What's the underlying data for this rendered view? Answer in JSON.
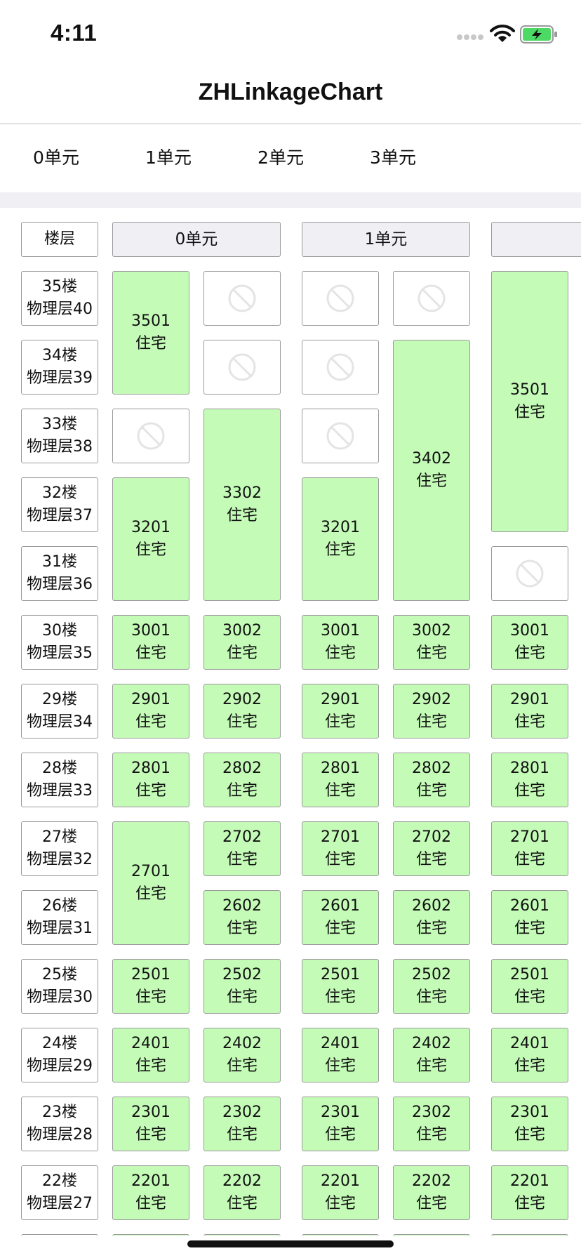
{
  "status_bar": {
    "time": "4:11",
    "icons": [
      "cellular-signal-icon",
      "wifi-icon",
      "battery-charging-icon"
    ],
    "battery_color": "#4cd964"
  },
  "nav": {
    "title": "ZHLinkageChart"
  },
  "tabs": [
    {
      "label": "0单元"
    },
    {
      "label": "1单元"
    },
    {
      "label": "2单元"
    },
    {
      "label": "3单元"
    }
  ],
  "colors": {
    "room_fill": "#c4fbb7",
    "header_fill": "#efeff4",
    "separator": "#efeff4"
  },
  "grid": {
    "corner_label": "楼层",
    "unit_headers": [
      "0单元",
      "1单元",
      ""
    ],
    "floors": [
      {
        "label": "35楼",
        "physical": "物理层40"
      },
      {
        "label": "34楼",
        "physical": "物理层39"
      },
      {
        "label": "33楼",
        "physical": "物理层38"
      },
      {
        "label": "32楼",
        "physical": "物理层37"
      },
      {
        "label": "31楼",
        "physical": "物理层36"
      },
      {
        "label": "30楼",
        "physical": "物理层35"
      },
      {
        "label": "29楼",
        "physical": "物理层34"
      },
      {
        "label": "28楼",
        "physical": "物理层33"
      },
      {
        "label": "27楼",
        "physical": "物理层32"
      },
      {
        "label": "26楼",
        "physical": "物理层31"
      },
      {
        "label": "25楼",
        "physical": "物理层30"
      },
      {
        "label": "24楼",
        "physical": "物理层29"
      },
      {
        "label": "23楼",
        "physical": "物理层28"
      },
      {
        "label": "22楼",
        "physical": "物理层27"
      }
    ],
    "rooms": [
      {
        "col": 0,
        "row": 0,
        "span": 2,
        "number": "3501",
        "type": "住宅"
      },
      {
        "col": 0,
        "row": 2,
        "span": 1,
        "empty": true
      },
      {
        "col": 0,
        "row": 3,
        "span": 2,
        "number": "3201",
        "type": "住宅"
      },
      {
        "col": 0,
        "row": 5,
        "span": 1,
        "number": "3001",
        "type": "住宅"
      },
      {
        "col": 0,
        "row": 6,
        "span": 1,
        "number": "2901",
        "type": "住宅"
      },
      {
        "col": 0,
        "row": 7,
        "span": 1,
        "number": "2801",
        "type": "住宅"
      },
      {
        "col": 0,
        "row": 8,
        "span": 2,
        "number": "2701",
        "type": "住宅"
      },
      {
        "col": 0,
        "row": 10,
        "span": 1,
        "number": "2501",
        "type": "住宅"
      },
      {
        "col": 0,
        "row": 11,
        "span": 1,
        "number": "2401",
        "type": "住宅"
      },
      {
        "col": 0,
        "row": 12,
        "span": 1,
        "number": "2301",
        "type": "住宅"
      },
      {
        "col": 0,
        "row": 13,
        "span": 1,
        "number": "2201",
        "type": "住宅"
      },
      {
        "col": 1,
        "row": 0,
        "span": 1,
        "empty": true
      },
      {
        "col": 1,
        "row": 1,
        "span": 1,
        "empty": true
      },
      {
        "col": 1,
        "row": 2,
        "span": 3,
        "number": "3302",
        "type": "住宅"
      },
      {
        "col": 1,
        "row": 5,
        "span": 1,
        "number": "3002",
        "type": "住宅"
      },
      {
        "col": 1,
        "row": 6,
        "span": 1,
        "number": "2902",
        "type": "住宅"
      },
      {
        "col": 1,
        "row": 7,
        "span": 1,
        "number": "2802",
        "type": "住宅"
      },
      {
        "col": 1,
        "row": 8,
        "span": 1,
        "number": "2702",
        "type": "住宅"
      },
      {
        "col": 1,
        "row": 9,
        "span": 1,
        "number": "2602",
        "type": "住宅"
      },
      {
        "col": 1,
        "row": 10,
        "span": 1,
        "number": "2502",
        "type": "住宅"
      },
      {
        "col": 1,
        "row": 11,
        "span": 1,
        "number": "2402",
        "type": "住宅"
      },
      {
        "col": 1,
        "row": 12,
        "span": 1,
        "number": "2302",
        "type": "住宅"
      },
      {
        "col": 1,
        "row": 13,
        "span": 1,
        "number": "2202",
        "type": "住宅"
      },
      {
        "col": 2,
        "row": 0,
        "span": 1,
        "empty": true
      },
      {
        "col": 2,
        "row": 1,
        "span": 1,
        "empty": true
      },
      {
        "col": 2,
        "row": 2,
        "span": 1,
        "empty": true
      },
      {
        "col": 2,
        "row": 3,
        "span": 2,
        "number": "3201",
        "type": "住宅"
      },
      {
        "col": 2,
        "row": 5,
        "span": 1,
        "number": "3001",
        "type": "住宅"
      },
      {
        "col": 2,
        "row": 6,
        "span": 1,
        "number": "2901",
        "type": "住宅"
      },
      {
        "col": 2,
        "row": 7,
        "span": 1,
        "number": "2801",
        "type": "住宅"
      },
      {
        "col": 2,
        "row": 8,
        "span": 1,
        "number": "2701",
        "type": "住宅"
      },
      {
        "col": 2,
        "row": 9,
        "span": 1,
        "number": "2601",
        "type": "住宅"
      },
      {
        "col": 2,
        "row": 10,
        "span": 1,
        "number": "2501",
        "type": "住宅"
      },
      {
        "col": 2,
        "row": 11,
        "span": 1,
        "number": "2401",
        "type": "住宅"
      },
      {
        "col": 2,
        "row": 12,
        "span": 1,
        "number": "2301",
        "type": "住宅"
      },
      {
        "col": 2,
        "row": 13,
        "span": 1,
        "number": "2201",
        "type": "住宅"
      },
      {
        "col": 3,
        "row": 0,
        "span": 1,
        "empty": true
      },
      {
        "col": 3,
        "row": 1,
        "span": 4,
        "number": "3402",
        "type": "住宅"
      },
      {
        "col": 3,
        "row": 5,
        "span": 1,
        "number": "3002",
        "type": "住宅"
      },
      {
        "col": 3,
        "row": 6,
        "span": 1,
        "number": "2902",
        "type": "住宅"
      },
      {
        "col": 3,
        "row": 7,
        "span": 1,
        "number": "2802",
        "type": "住宅"
      },
      {
        "col": 3,
        "row": 8,
        "span": 1,
        "number": "2702",
        "type": "住宅"
      },
      {
        "col": 3,
        "row": 9,
        "span": 1,
        "number": "2602",
        "type": "住宅"
      },
      {
        "col": 3,
        "row": 10,
        "span": 1,
        "number": "2502",
        "type": "住宅"
      },
      {
        "col": 3,
        "row": 11,
        "span": 1,
        "number": "2402",
        "type": "住宅"
      },
      {
        "col": 3,
        "row": 12,
        "span": 1,
        "number": "2302",
        "type": "住宅"
      },
      {
        "col": 3,
        "row": 13,
        "span": 1,
        "number": "2202",
        "type": "住宅"
      },
      {
        "col": 4,
        "row": 0,
        "span": 4,
        "number": "3501",
        "type": "住宅"
      },
      {
        "col": 4,
        "row": 4,
        "span": 1,
        "empty": true
      },
      {
        "col": 4,
        "row": 5,
        "span": 1,
        "number": "3001",
        "type": "住宅"
      },
      {
        "col": 4,
        "row": 6,
        "span": 1,
        "number": "2901",
        "type": "住宅"
      },
      {
        "col": 4,
        "row": 7,
        "span": 1,
        "number": "2801",
        "type": "住宅"
      },
      {
        "col": 4,
        "row": 8,
        "span": 1,
        "number": "2701",
        "type": "住宅"
      },
      {
        "col": 4,
        "row": 9,
        "span": 1,
        "number": "2601",
        "type": "住宅"
      },
      {
        "col": 4,
        "row": 10,
        "span": 1,
        "number": "2501",
        "type": "住宅"
      },
      {
        "col": 4,
        "row": 11,
        "span": 1,
        "number": "2401",
        "type": "住宅"
      },
      {
        "col": 4,
        "row": 12,
        "span": 1,
        "number": "2301",
        "type": "住宅"
      },
      {
        "col": 4,
        "row": 13,
        "span": 1,
        "number": "2201",
        "type": "住宅"
      }
    ]
  }
}
